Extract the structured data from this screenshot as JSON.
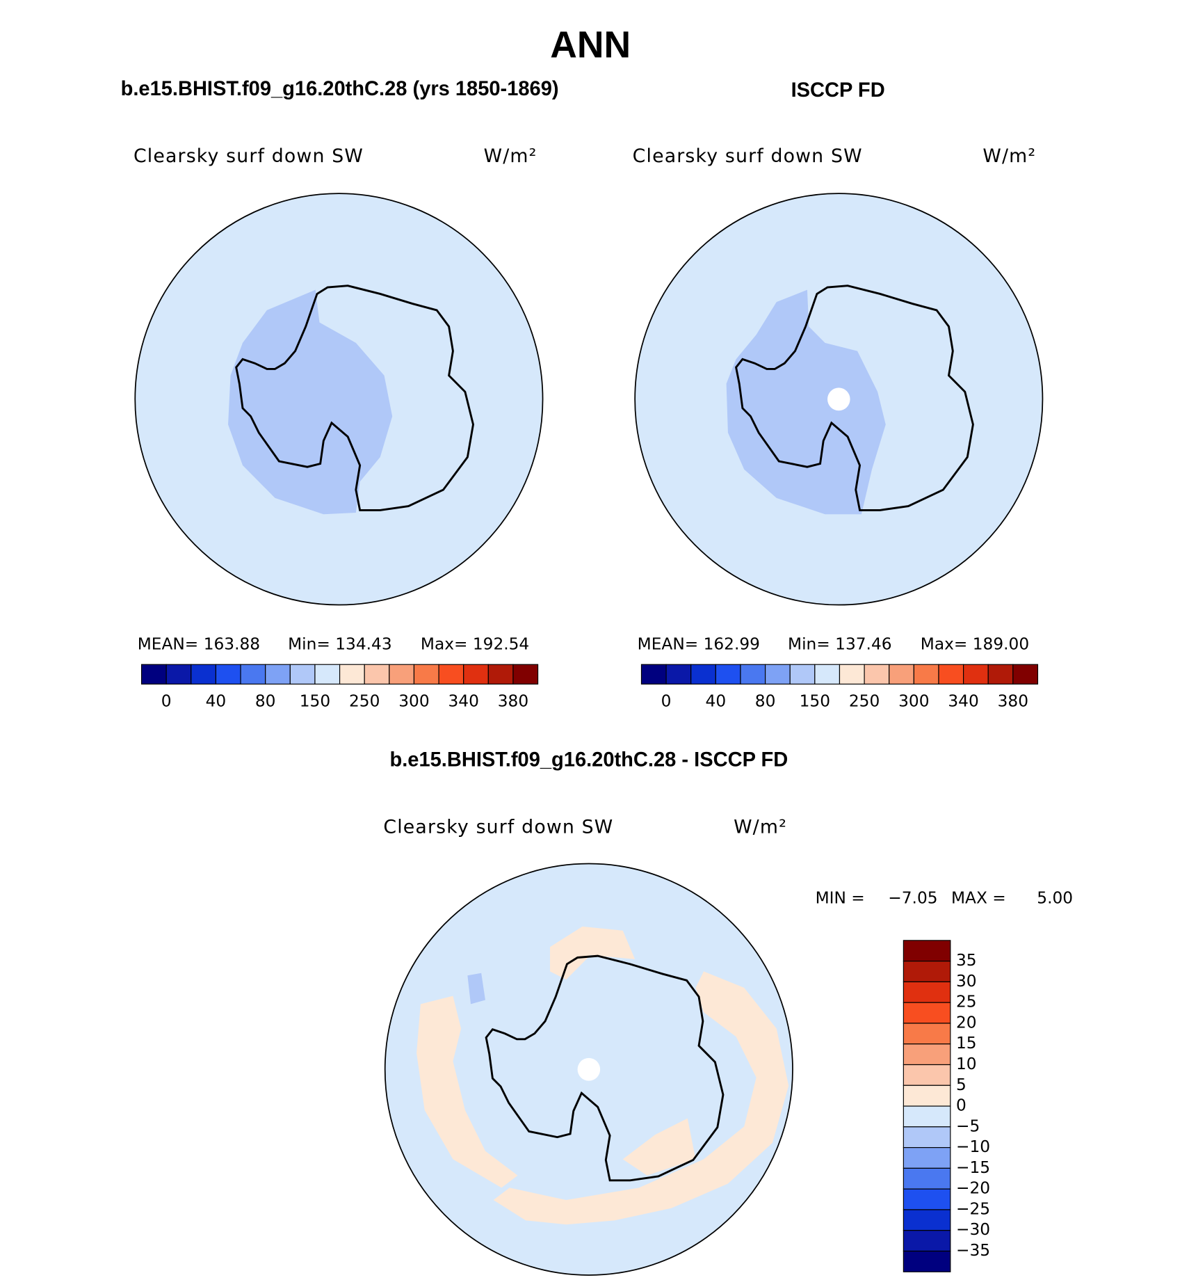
{
  "title": "ANN",
  "panels": [
    {
      "subtitle": "b.e15.BHIST.f09_g16.20thC.28 (yrs 1850-1869)",
      "variable": "Clearsky surf down SW",
      "units": "W/m²",
      "stats": [
        "MEAN= 163.88",
        "Min= 134.43",
        "Max= 192.54"
      ]
    },
    {
      "subtitle": "ISCCP FD",
      "variable": "Clearsky surf down SW",
      "units": "W/m²",
      "stats": [
        "MEAN= 162.99",
        "Min= 137.46",
        "Max= 189.00"
      ]
    }
  ],
  "colorbar": {
    "colors": [
      "#00007f",
      "#0a18a8",
      "#0a30d0",
      "#1e50f0",
      "#4a78f0",
      "#7ea2f5",
      "#b0c8f8",
      "#d6e8fb",
      "#fde8d6",
      "#fbc6ac",
      "#f8a07a",
      "#f87a48",
      "#f84e20",
      "#e03010",
      "#b01a08",
      "#800000"
    ],
    "labels": [
      "0",
      "40",
      "80",
      "150",
      "250",
      "300",
      "340",
      "380"
    ]
  },
  "difference": {
    "subtitle": "b.e15.BHIST.f09_g16.20thC.28 - ISCCP FD",
    "variable": "Clearsky surf down SW",
    "units": "W/m²",
    "stats": [
      "MIN =",
      "−7.05",
      "MAX =",
      "5.00"
    ],
    "labels": [
      "35",
      "30",
      "25",
      "20",
      "15",
      "10",
      "5",
      "0",
      "−5",
      "−10",
      "−15",
      "−20",
      "−25",
      "−30",
      "−35"
    ]
  }
}
